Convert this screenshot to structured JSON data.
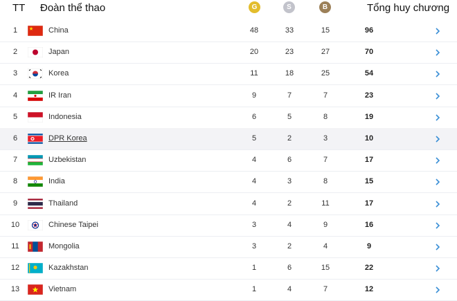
{
  "header": {
    "rank": "TT",
    "team": "Đoàn thể thao",
    "gold": "G",
    "silver": "S",
    "bronze": "B",
    "total": "Tổng huy chương"
  },
  "table": {
    "rows": [
      {
        "rank": 1,
        "team": "China",
        "gold": 48,
        "silver": 33,
        "bronze": 15,
        "total": 96
      },
      {
        "rank": 2,
        "team": "Japan",
        "gold": 20,
        "silver": 23,
        "bronze": 27,
        "total": 70
      },
      {
        "rank": 3,
        "team": "Korea",
        "gold": 11,
        "silver": 18,
        "bronze": 25,
        "total": 54
      },
      {
        "rank": 4,
        "team": "IR Iran",
        "gold": 9,
        "silver": 7,
        "bronze": 7,
        "total": 23
      },
      {
        "rank": 5,
        "team": "Indonesia",
        "gold": 6,
        "silver": 5,
        "bronze": 8,
        "total": 19
      },
      {
        "rank": 6,
        "team": "DPR Korea",
        "gold": 5,
        "silver": 2,
        "bronze": 3,
        "total": 10
      },
      {
        "rank": 7,
        "team": "Uzbekistan",
        "gold": 4,
        "silver": 6,
        "bronze": 7,
        "total": 17
      },
      {
        "rank": 8,
        "team": "India",
        "gold": 4,
        "silver": 3,
        "bronze": 8,
        "total": 15
      },
      {
        "rank": 9,
        "team": "Thailand",
        "gold": 4,
        "silver": 2,
        "bronze": 11,
        "total": 17
      },
      {
        "rank": 10,
        "team": "Chinese Taipei",
        "gold": 3,
        "silver": 4,
        "bronze": 9,
        "total": 16
      },
      {
        "rank": 11,
        "team": "Mongolia",
        "gold": 3,
        "silver": 2,
        "bronze": 4,
        "total": 9
      },
      {
        "rank": 12,
        "team": "Kazakhstan",
        "gold": 1,
        "silver": 6,
        "bronze": 15,
        "total": 22
      },
      {
        "rank": 13,
        "team": "Vietnam",
        "gold": 1,
        "silver": 4,
        "bronze": 7,
        "total": 12
      }
    ]
  }
}
